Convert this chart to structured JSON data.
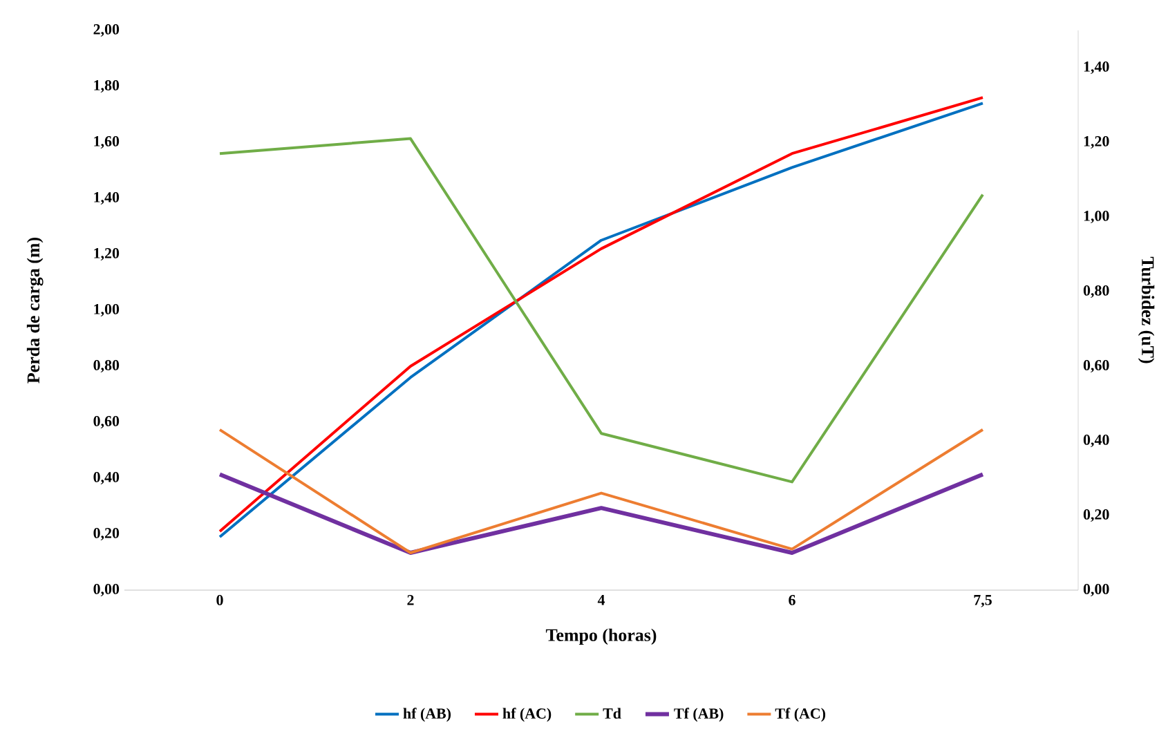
{
  "chart_data": {
    "type": "line",
    "xlabel": "Tempo (horas)",
    "ylabel": "Perda de carga (m)",
    "y2label": "Turbidez (uT)",
    "categories": [
      "0",
      "2",
      "4",
      "6",
      "7,5"
    ],
    "series": [
      {
        "name": "hf (AB)",
        "color": "#0070c0",
        "values": [
          0.19,
          0.76,
          1.25,
          1.51,
          1.74
        ]
      },
      {
        "name": "hf (AC)",
        "color": "#ff0000",
        "values": [
          0.21,
          0.8,
          1.22,
          1.56,
          1.76
        ]
      },
      {
        "name": "Td",
        "color": "#70ad47",
        "axis": "y2",
        "values": [
          1.17,
          1.21,
          0.42,
          0.29,
          1.06
        ]
      },
      {
        "name": "Tf (AB)",
        "color": "#7030a0",
        "axis": "y2",
        "values": [
          0.31,
          0.1,
          0.22,
          0.1,
          0.31
        ]
      },
      {
        "name": "Tf (AC)",
        "color": "#ed7d31",
        "axis": "y2",
        "values": [
          0.43,
          0.1,
          0.26,
          0.11,
          0.43
        ]
      }
    ],
    "ylim": [
      0,
      2
    ],
    "yticks": [
      {
        "value": 0,
        "label": "0,00"
      },
      {
        "value": 0.2,
        "label": "0,20"
      },
      {
        "value": 0.4,
        "label": "0,40"
      },
      {
        "value": 0.6,
        "label": "0,60"
      },
      {
        "value": 0.8,
        "label": "0,80"
      },
      {
        "value": 1,
        "label": "1,00"
      },
      {
        "value": 1.2,
        "label": "1,20"
      },
      {
        "value": 1.4,
        "label": "1,40"
      },
      {
        "value": 1.6,
        "label": "1,60"
      },
      {
        "value": 1.8,
        "label": "1,80"
      },
      {
        "value": 2,
        "label": "2,00"
      }
    ],
    "y2lim": [
      0,
      1.5
    ],
    "y2ticks": [
      {
        "value": 0,
        "label": "0,00"
      },
      {
        "value": 0.2,
        "label": "0,20"
      },
      {
        "value": 0.4,
        "label": "0,40"
      },
      {
        "value": 0.6,
        "label": "0,60"
      },
      {
        "value": 0.8,
        "label": "0,80"
      },
      {
        "value": 1,
        "label": "1,00"
      },
      {
        "value": 1.2,
        "label": "1,20"
      },
      {
        "value": 1.4,
        "label": "1,40"
      }
    ],
    "legend": "bottom",
    "grid": false,
    "marker": "none",
    "line_style": "solid"
  }
}
